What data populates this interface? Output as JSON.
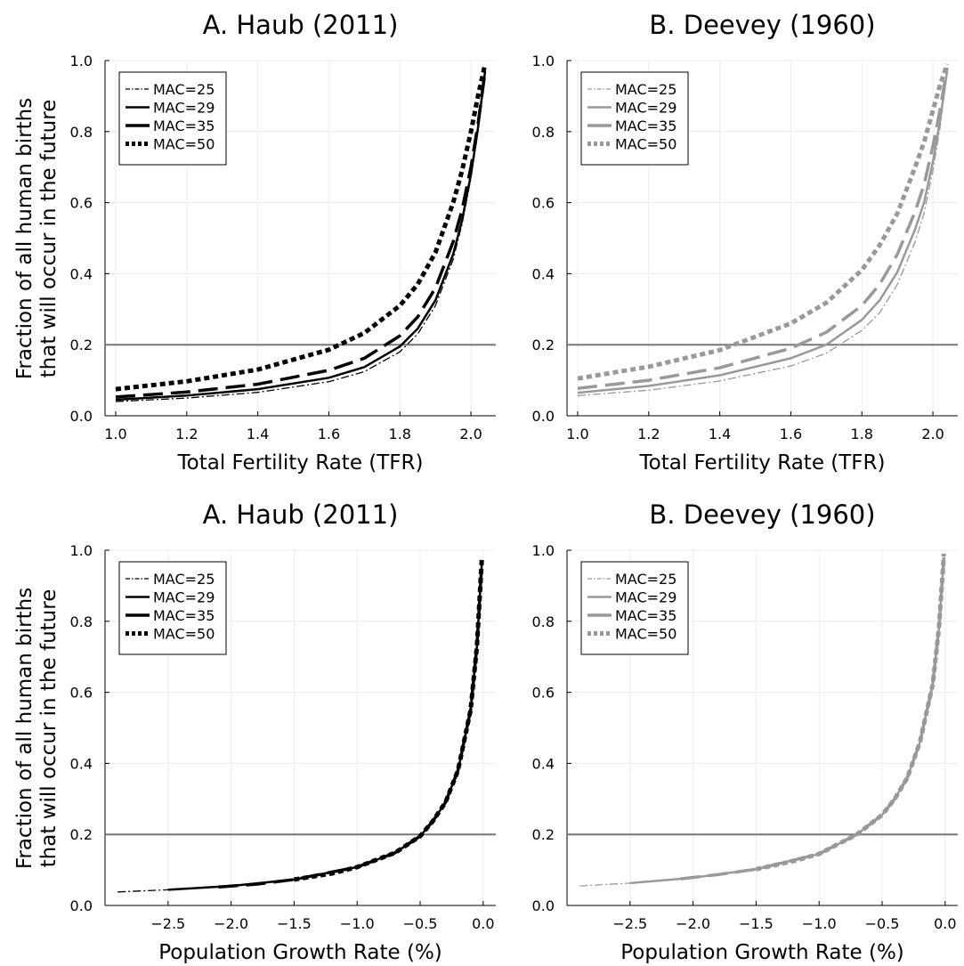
{
  "figure": {
    "ylabel_line1": "Fraction of all human births",
    "ylabel_line2": "that will occur in the future"
  },
  "chart_data": [
    {
      "type": "line",
      "title": "A. Haub (2011)",
      "xlabel": "Total Fertility Rate (TFR)",
      "ylabel": "Fraction of all human births that will occur in the future",
      "xlim": [
        0.97,
        2.07
      ],
      "ylim": [
        0,
        1
      ],
      "xticks": [
        1.0,
        1.2,
        1.4,
        1.6,
        1.8,
        2.0
      ],
      "xtick_labels": [
        "1.0",
        "1.2",
        "1.4",
        "1.6",
        "1.8",
        "2.0"
      ],
      "yticks": [
        0,
        0.2,
        0.4,
        0.6,
        0.8,
        1.0
      ],
      "ytick_labels": [
        "0.0",
        "0.2",
        "0.4",
        "0.6",
        "0.8",
        "1.0"
      ],
      "hline": 0.2,
      "grid": true,
      "legend": "top-left",
      "color": "#000000",
      "series": [
        {
          "name": "MAC=25",
          "style": "dashdot",
          "width": 1.3,
          "x": [
            1.0,
            1.2,
            1.4,
            1.6,
            1.7,
            1.8,
            1.85,
            1.9,
            1.95,
            1.975,
            2.0,
            2.02,
            2.04
          ],
          "y": [
            0.04,
            0.05,
            0.066,
            0.096,
            0.124,
            0.18,
            0.23,
            0.31,
            0.44,
            0.54,
            0.67,
            0.8,
            0.97
          ]
        },
        {
          "name": "MAC=29",
          "style": "solid",
          "width": 2.5,
          "x": [
            1.0,
            1.2,
            1.4,
            1.6,
            1.7,
            1.8,
            1.85,
            1.9,
            1.95,
            1.975,
            2.0,
            2.02,
            2.04
          ],
          "y": [
            0.045,
            0.057,
            0.075,
            0.107,
            0.137,
            0.195,
            0.245,
            0.325,
            0.455,
            0.55,
            0.68,
            0.81,
            0.97
          ]
        },
        {
          "name": "MAC=35",
          "style": "dash",
          "width": 3.5,
          "x": [
            1.0,
            1.2,
            1.4,
            1.6,
            1.7,
            1.8,
            1.85,
            1.9,
            1.95,
            1.975,
            2.0,
            2.02,
            2.04
          ],
          "y": [
            0.053,
            0.067,
            0.089,
            0.128,
            0.162,
            0.225,
            0.278,
            0.36,
            0.49,
            0.58,
            0.7,
            0.82,
            0.97
          ]
        },
        {
          "name": "MAC=50",
          "style": "dot",
          "width": 5,
          "x": [
            1.0,
            1.2,
            1.4,
            1.6,
            1.7,
            1.8,
            1.85,
            1.9,
            1.95,
            1.975,
            2.0,
            2.02,
            2.04
          ],
          "y": [
            0.075,
            0.097,
            0.13,
            0.186,
            0.233,
            0.31,
            0.37,
            0.46,
            0.6,
            0.69,
            0.8,
            0.9,
            0.99
          ]
        }
      ]
    },
    {
      "type": "line",
      "title": "B. Deevey (1960)",
      "xlabel": "Total Fertility Rate (TFR)",
      "ylabel": "",
      "xlim": [
        0.97,
        2.07
      ],
      "ylim": [
        0,
        1
      ],
      "xticks": [
        1.0,
        1.2,
        1.4,
        1.6,
        1.8,
        2.0
      ],
      "xtick_labels": [
        "1.0",
        "1.2",
        "1.4",
        "1.6",
        "1.8",
        "2.0"
      ],
      "yticks": [
        0,
        0.2,
        0.4,
        0.6,
        0.8,
        1.0
      ],
      "ytick_labels": [
        "0.0",
        "0.2",
        "0.4",
        "0.6",
        "0.8",
        "1.0"
      ],
      "hline": 0.2,
      "grid": true,
      "legend": "top-left",
      "color": "#999999",
      "series": [
        {
          "name": "MAC=25",
          "style": "dashdot",
          "width": 1.3,
          "x": [
            1.0,
            1.2,
            1.4,
            1.6,
            1.7,
            1.8,
            1.85,
            1.9,
            1.95,
            1.975,
            2.0,
            2.02,
            2.04
          ],
          "y": [
            0.057,
            0.072,
            0.098,
            0.14,
            0.176,
            0.24,
            0.29,
            0.37,
            0.49,
            0.57,
            0.69,
            0.81,
            0.97
          ]
        },
        {
          "name": "MAC=29",
          "style": "solid",
          "width": 2.5,
          "x": [
            1.0,
            1.2,
            1.4,
            1.6,
            1.7,
            1.8,
            1.85,
            1.9,
            1.95,
            1.975,
            2.0,
            2.02,
            2.04
          ],
          "y": [
            0.065,
            0.084,
            0.114,
            0.162,
            0.2,
            0.27,
            0.325,
            0.405,
            0.525,
            0.6,
            0.715,
            0.83,
            0.97
          ]
        },
        {
          "name": "MAC=35",
          "style": "dash",
          "width": 3.5,
          "x": [
            1.0,
            1.2,
            1.4,
            1.6,
            1.7,
            1.8,
            1.85,
            1.9,
            1.95,
            1.975,
            2.0,
            2.02,
            2.04
          ],
          "y": [
            0.077,
            0.1,
            0.135,
            0.19,
            0.235,
            0.31,
            0.37,
            0.455,
            0.575,
            0.65,
            0.76,
            0.86,
            0.98
          ]
        },
        {
          "name": "MAC=50",
          "style": "dot",
          "width": 5,
          "x": [
            1.0,
            1.2,
            1.4,
            1.6,
            1.7,
            1.8,
            1.85,
            1.9,
            1.95,
            1.975,
            2.0,
            2.02,
            2.04
          ],
          "y": [
            0.105,
            0.138,
            0.185,
            0.26,
            0.318,
            0.41,
            0.48,
            0.57,
            0.7,
            0.77,
            0.86,
            0.93,
            0.99
          ]
        }
      ]
    },
    {
      "type": "line",
      "title": "A. Haub (2011)",
      "xlabel": "Population Growth Rate (%)",
      "ylabel": "Fraction of all human births that will occur in the future",
      "xlim": [
        -3.0,
        0.1
      ],
      "ylim": [
        0,
        1
      ],
      "xticks": [
        -2.5,
        -2.0,
        -1.5,
        -1.0,
        -0.5,
        0.0
      ],
      "xtick_labels": [
        "−2.5",
        "−2.0",
        "−1.5",
        "−1.0",
        "−0.5",
        "0.0"
      ],
      "yticks": [
        0,
        0.2,
        0.4,
        0.6,
        0.8,
        1.0
      ],
      "ytick_labels": [
        "0.0",
        "0.2",
        "0.4",
        "0.6",
        "0.8",
        "1.0"
      ],
      "hline": 0.2,
      "grid": true,
      "legend": "top-left",
      "color": "#000000",
      "series": [
        {
          "name": "MAC=25",
          "style": "dashdot",
          "width": 1.3,
          "x": [
            -2.9,
            -2.5,
            -2.0,
            -1.5,
            -1.0,
            -0.7,
            -0.5,
            -0.4,
            -0.3,
            -0.2,
            -0.1,
            -0.05,
            -0.01
          ],
          "y": [
            0.038,
            0.044,
            0.055,
            0.073,
            0.108,
            0.148,
            0.195,
            0.237,
            0.29,
            0.38,
            0.55,
            0.73,
            0.97
          ]
        },
        {
          "name": "MAC=29",
          "style": "solid",
          "width": 2.5,
          "x": [
            -2.5,
            -2.0,
            -1.5,
            -1.0,
            -0.7,
            -0.5,
            -0.4,
            -0.3,
            -0.2,
            -0.1,
            -0.05,
            -0.01
          ],
          "y": [
            0.044,
            0.055,
            0.073,
            0.108,
            0.148,
            0.195,
            0.237,
            0.29,
            0.38,
            0.55,
            0.73,
            0.97
          ]
        },
        {
          "name": "MAC=35",
          "style": "dash",
          "width": 3.5,
          "x": [
            -2.1,
            -1.8,
            -1.5,
            -1.0,
            -0.7,
            -0.5,
            -0.4,
            -0.3,
            -0.2,
            -0.1,
            -0.05,
            -0.01
          ],
          "y": [
            0.052,
            0.06,
            0.073,
            0.108,
            0.148,
            0.195,
            0.237,
            0.29,
            0.38,
            0.55,
            0.73,
            0.97
          ]
        },
        {
          "name": "MAC=50",
          "style": "dot",
          "width": 5,
          "x": [
            -1.5,
            -1.2,
            -1.0,
            -0.7,
            -0.5,
            -0.4,
            -0.3,
            -0.2,
            -0.1,
            -0.05,
            -0.01
          ],
          "y": [
            0.073,
            0.09,
            0.108,
            0.148,
            0.195,
            0.237,
            0.29,
            0.38,
            0.55,
            0.73,
            0.98
          ]
        }
      ]
    },
    {
      "type": "line",
      "title": "B. Deevey (1960)",
      "xlabel": "Population Growth Rate (%)",
      "ylabel": "",
      "xlim": [
        -3.0,
        0.1
      ],
      "ylim": [
        0,
        1
      ],
      "xticks": [
        -2.5,
        -2.0,
        -1.5,
        -1.0,
        -0.5,
        0.0
      ],
      "xtick_labels": [
        "−2.5",
        "−2.0",
        "−1.5",
        "−1.0",
        "−0.5",
        "0.0"
      ],
      "yticks": [
        0,
        0.2,
        0.4,
        0.6,
        0.8,
        1.0
      ],
      "ytick_labels": [
        "0.0",
        "0.2",
        "0.4",
        "0.6",
        "0.8",
        "1.0"
      ],
      "hline": 0.2,
      "grid": true,
      "legend": "top-left",
      "color": "#999999",
      "series": [
        {
          "name": "MAC=25",
          "style": "dashdot",
          "width": 1.3,
          "x": [
            -2.9,
            -2.5,
            -2.0,
            -1.5,
            -1.0,
            -0.7,
            -0.5,
            -0.4,
            -0.3,
            -0.2,
            -0.1,
            -0.05,
            -0.01
          ],
          "y": [
            0.055,
            0.063,
            0.078,
            0.102,
            0.145,
            0.2,
            0.255,
            0.3,
            0.36,
            0.46,
            0.62,
            0.78,
            0.98
          ]
        },
        {
          "name": "MAC=29",
          "style": "solid",
          "width": 2.5,
          "x": [
            -2.5,
            -2.0,
            -1.5,
            -1.0,
            -0.7,
            -0.5,
            -0.4,
            -0.3,
            -0.2,
            -0.1,
            -0.05,
            -0.01
          ],
          "y": [
            0.063,
            0.078,
            0.102,
            0.145,
            0.2,
            0.255,
            0.3,
            0.36,
            0.46,
            0.62,
            0.78,
            0.98
          ]
        },
        {
          "name": "MAC=35",
          "style": "dash",
          "width": 3.5,
          "x": [
            -2.1,
            -1.8,
            -1.5,
            -1.0,
            -0.7,
            -0.5,
            -0.4,
            -0.3,
            -0.2,
            -0.1,
            -0.05,
            -0.01
          ],
          "y": [
            0.075,
            0.087,
            0.102,
            0.145,
            0.2,
            0.255,
            0.3,
            0.36,
            0.46,
            0.62,
            0.78,
            0.98
          ]
        },
        {
          "name": "MAC=50",
          "style": "dot",
          "width": 5,
          "x": [
            -1.5,
            -1.2,
            -1.0,
            -0.7,
            -0.5,
            -0.4,
            -0.3,
            -0.2,
            -0.1,
            -0.05,
            -0.01
          ],
          "y": [
            0.102,
            0.125,
            0.145,
            0.2,
            0.255,
            0.3,
            0.36,
            0.46,
            0.62,
            0.78,
            0.99
          ]
        }
      ]
    }
  ]
}
